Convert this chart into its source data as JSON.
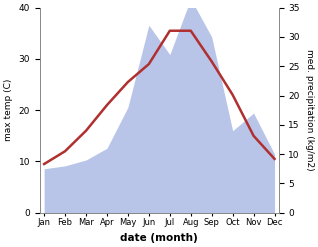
{
  "months": [
    "Jan",
    "Feb",
    "Mar",
    "Apr",
    "May",
    "Jun",
    "Jul",
    "Aug",
    "Sep",
    "Oct",
    "Nov",
    "Dec"
  ],
  "month_indices": [
    0,
    1,
    2,
    3,
    4,
    5,
    6,
    7,
    8,
    9,
    10,
    11
  ],
  "temperature": [
    9.5,
    12.0,
    16.0,
    21.0,
    25.5,
    29.0,
    35.5,
    35.5,
    29.5,
    23.0,
    15.0,
    10.5
  ],
  "precipitation": [
    7.5,
    8.0,
    9.0,
    11.0,
    18.0,
    32.0,
    27.0,
    36.5,
    30.0,
    14.0,
    17.0,
    10.0
  ],
  "temp_color": "#b03030",
  "precip_fill_color": "#b8c4e8",
  "temp_ylim": [
    0,
    40
  ],
  "precip_ylim": [
    0,
    35
  ],
  "temp_yticks": [
    0,
    10,
    20,
    30,
    40
  ],
  "precip_yticks": [
    0,
    5,
    10,
    15,
    20,
    25,
    30,
    35
  ],
  "xlabel": "date (month)",
  "ylabel_left": "max temp (C)",
  "ylabel_right": "med. precipitation (kg/m2)",
  "background_color": "#ffffff",
  "figsize": [
    3.18,
    2.47
  ],
  "dpi": 100
}
